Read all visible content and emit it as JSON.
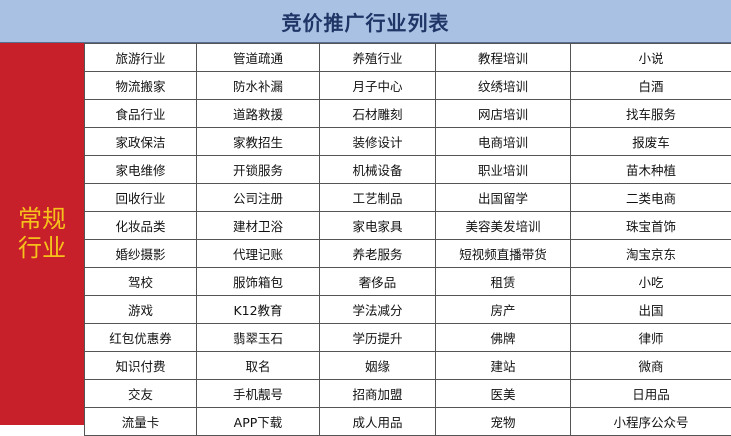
{
  "title": "竞价推广行业列表",
  "category": "常规行业",
  "colors": {
    "header_bg": "#a9c1e3",
    "title_text": "#1f3566",
    "side_bg": "#c8202a",
    "side_text": "#f5c21b"
  },
  "rows": [
    [
      "旅游行业",
      "管道疏通",
      "养殖行业",
      "教程培训",
      "小说"
    ],
    [
      "物流搬家",
      "防水补漏",
      "月子中心",
      "纹绣培训",
      "白酒"
    ],
    [
      "食品行业",
      "道路救援",
      "石材雕刻",
      "网店培训",
      "找车服务"
    ],
    [
      "家政保洁",
      "家教招生",
      "装修设计",
      "电商培训",
      "报废车"
    ],
    [
      "家电维修",
      "开锁服务",
      "机械设备",
      "职业培训",
      "苗木种植"
    ],
    [
      "回收行业",
      "公司注册",
      "工艺制品",
      "出国留学",
      "二类电商"
    ],
    [
      "化妆品类",
      "建材卫浴",
      "家电家具",
      "美容美发培训",
      "珠宝首饰"
    ],
    [
      "婚纱摄影",
      "代理记账",
      "养老服务",
      "短视频直播带货",
      "淘宝京东"
    ],
    [
      "驾校",
      "服饰箱包",
      "奢侈品",
      "租赁",
      "小吃"
    ],
    [
      "游戏",
      "K12教育",
      "学法减分",
      "房产",
      "出国"
    ],
    [
      "红包优惠券",
      "翡翠玉石",
      "学历提升",
      "佛牌",
      "律师"
    ],
    [
      "知识付费",
      "取名",
      "姻缘",
      "建站",
      "微商"
    ],
    [
      "交友",
      "手机靓号",
      "招商加盟",
      "医美",
      "日用品"
    ],
    [
      "流量卡",
      "APP下载",
      "成人用品",
      "宠物",
      "小程序公众号"
    ]
  ]
}
